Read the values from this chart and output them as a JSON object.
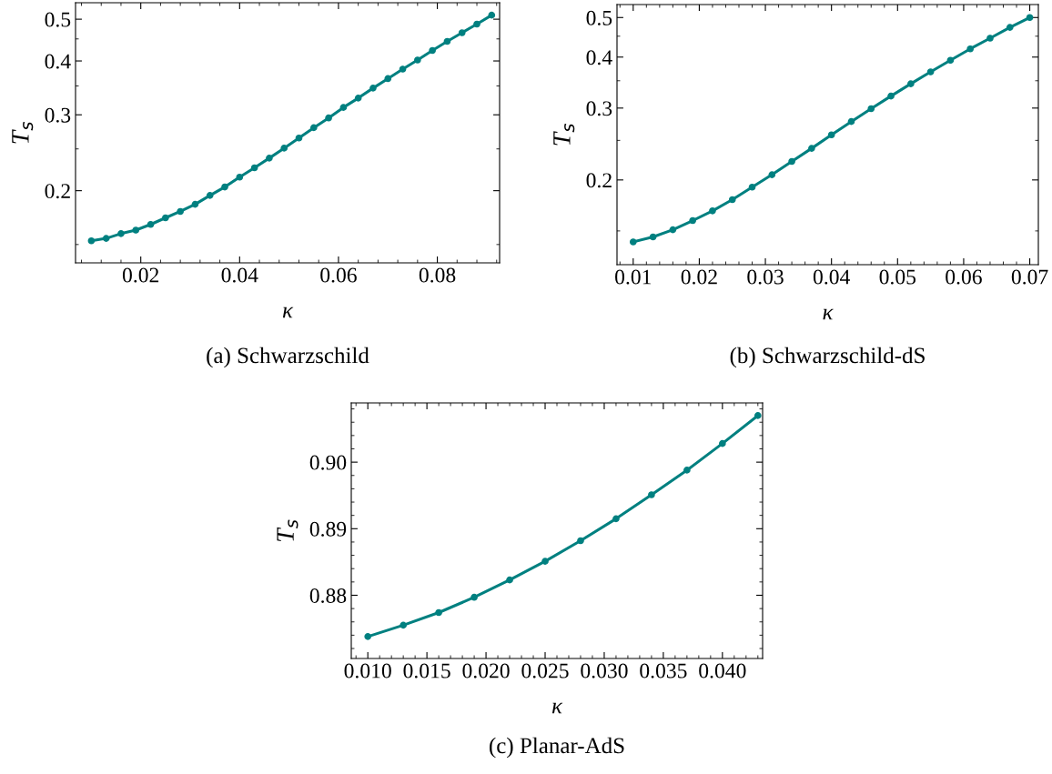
{
  "chart_data": [
    {
      "type": "line",
      "xlabel": "κ",
      "ylabel": "T$_{s}$",
      "annotations": [
        "(a) Schwarzschild"
      ],
      "log": "y",
      "marker": "circle",
      "line_style": "solid",
      "grid": false,
      "legend": false,
      "x": [
        0.01,
        0.013,
        0.016,
        0.019,
        0.022,
        0.025,
        0.028,
        0.031,
        0.034,
        0.037,
        0.04,
        0.043,
        0.046,
        0.049,
        0.052,
        0.055,
        0.058,
        0.061,
        0.064,
        0.067,
        0.07,
        0.073,
        0.076,
        0.079,
        0.082,
        0.085,
        0.088,
        0.091
      ],
      "series": [
        {
          "color": "#008080",
          "values": [
            0.153,
            0.155,
            0.159,
            0.162,
            0.167,
            0.173,
            0.179,
            0.186,
            0.195,
            0.204,
            0.215,
            0.226,
            0.238,
            0.251,
            0.265,
            0.28,
            0.295,
            0.312,
            0.328,
            0.346,
            0.364,
            0.383,
            0.402,
            0.423,
            0.444,
            0.465,
            0.487,
            0.511
          ]
        }
      ],
      "xlim": [
        0.0068,
        0.0926
      ],
      "ylim": [
        0.136,
        0.546
      ],
      "xticks": [
        0.02,
        0.04,
        0.06,
        0.08
      ],
      "yticks": [
        0.2,
        0.3,
        0.4,
        0.5
      ]
    },
    {
      "type": "line",
      "xlabel": "κ",
      "ylabel": "T$_{s}$",
      "annotations": [
        "(b) Schwarzschild-dS"
      ],
      "log": "y",
      "marker": "circle",
      "line_style": "solid",
      "grid": false,
      "legend": false,
      "x": [
        0.01,
        0.013,
        0.016,
        0.019,
        0.022,
        0.025,
        0.028,
        0.031,
        0.034,
        0.037,
        0.04,
        0.043,
        0.046,
        0.049,
        0.052,
        0.055,
        0.058,
        0.061,
        0.064,
        0.067,
        0.07
      ],
      "series": [
        {
          "color": "#008080",
          "values": [
            0.141,
            0.145,
            0.151,
            0.159,
            0.168,
            0.179,
            0.192,
            0.206,
            0.222,
            0.239,
            0.258,
            0.278,
            0.299,
            0.321,
            0.344,
            0.368,
            0.393,
            0.419,
            0.445,
            0.473,
            0.5
          ]
        }
      ],
      "xlim": [
        0.00755,
        0.0713
      ],
      "ylim": [
        0.124,
        0.538
      ],
      "xticks": [
        0.01,
        0.02,
        0.03,
        0.04,
        0.05,
        0.06,
        0.07
      ],
      "yticks": [
        0.2,
        0.3,
        0.4,
        0.5
      ]
    },
    {
      "type": "line",
      "xlabel": "κ",
      "ylabel": "T$_{s}$",
      "annotations": [
        "(c) Planar-AdS"
      ],
      "marker": "circle",
      "line_style": "solid",
      "grid": false,
      "legend": false,
      "x": [
        0.01,
        0.013,
        0.016,
        0.019,
        0.022,
        0.025,
        0.028,
        0.031,
        0.034,
        0.037,
        0.04,
        0.043
      ],
      "series": [
        {
          "color": "#008080",
          "values": [
            0.8738,
            0.8755,
            0.8774,
            0.8797,
            0.8823,
            0.8851,
            0.8882,
            0.8915,
            0.8951,
            0.8988,
            0.9028,
            0.907
          ]
        }
      ],
      "xlim": [
        0.0086,
        0.0434
      ],
      "ylim": [
        0.8705,
        0.9089
      ],
      "xticks": [
        {
          "value": 0.01,
          "label": "0.010"
        },
        {
          "value": 0.015,
          "label": "0.015"
        },
        {
          "value": 0.02,
          "label": "0.020"
        },
        {
          "value": 0.025,
          "label": "0.025"
        },
        {
          "value": 0.03,
          "label": "0.030"
        },
        {
          "value": 0.035,
          "label": "0.035"
        },
        {
          "value": 0.04,
          "label": "0.040"
        }
      ],
      "yticks": [
        0.88,
        0.89,
        {
          "value": 0.9,
          "label": "0.90"
        }
      ]
    }
  ]
}
